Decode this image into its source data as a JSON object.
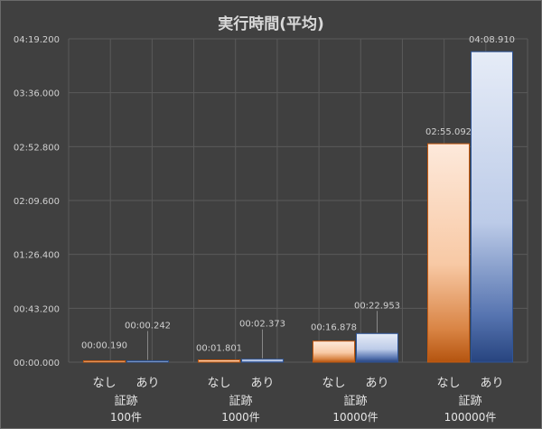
{
  "chart_data": {
    "type": "bar",
    "title": "実行時間(平均)",
    "xlabel": "",
    "ylabel": "",
    "y_unit": "mm:ss.sss",
    "ylim_seconds": [
      0,
      259.2
    ],
    "y_tick_labels": [
      "00:00.000",
      "00:43.200",
      "01:26.400",
      "02:09.600",
      "02:52.800",
      "03:36.000",
      "04:19.200"
    ],
    "grid": true,
    "legend": "none",
    "groups": [
      {
        "label": "証跡",
        "count_label": "100件",
        "bars": [
          {
            "category": "なし",
            "value_seconds": 0.19,
            "value_label": "00:00.190"
          },
          {
            "category": "あり",
            "value_seconds": 0.242,
            "value_label": "00:00.242"
          }
        ]
      },
      {
        "label": "証跡",
        "count_label": "1000件",
        "bars": [
          {
            "category": "なし",
            "value_seconds": 1.801,
            "value_label": "00:01.801"
          },
          {
            "category": "あり",
            "value_seconds": 2.373,
            "value_label": "00:02.373"
          }
        ]
      },
      {
        "label": "証跡",
        "count_label": "10000件",
        "bars": [
          {
            "category": "なし",
            "value_seconds": 16.878,
            "value_label": "00:16.878"
          },
          {
            "category": "あり",
            "value_seconds": 22.953,
            "value_label": "00:22.953"
          }
        ]
      },
      {
        "label": "証跡",
        "count_label": "100000件",
        "bars": [
          {
            "category": "なし",
            "value_seconds": 175.092,
            "value_label": "02:55.092"
          },
          {
            "category": "あり",
            "value_seconds": 248.91,
            "value_label": "04:08.910"
          }
        ]
      }
    ],
    "series_colors": {
      "なし": "#c55a11",
      "あり": "#2f5597"
    }
  }
}
